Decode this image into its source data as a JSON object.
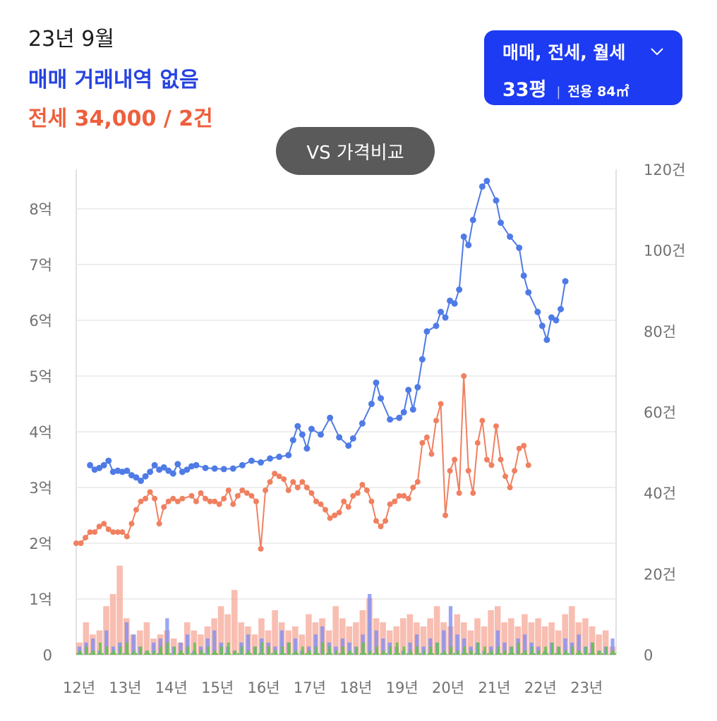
{
  "header": {
    "date": "23년 9월",
    "sale_status": "매매 거래내역 없음",
    "jeonse_summary": "전세 34,000 / 2건"
  },
  "filter": {
    "types": "매매, 전세, 월세",
    "size": "33평",
    "area": "전용 84㎡",
    "icon": "chevron-down-icon"
  },
  "vs_button": "VS 가격비교",
  "colors": {
    "sale_line": "#4f7be6",
    "jeonse_line": "#f08060",
    "sale_bar": "#7f8ef0",
    "jeonse_bar": "#f6a898",
    "monthly_bar": "#64c24a",
    "accent": "#1d3bf3"
  },
  "chart_data": {
    "type": "line",
    "x_tick_labels": [
      "12년",
      "13년",
      "14년",
      "15년",
      "16년",
      "17년",
      "18년",
      "19년",
      "20년",
      "21년",
      "22년",
      "23년"
    ],
    "y_left_tick_labels": [
      "0",
      "1억",
      "2억",
      "3억",
      "4억",
      "5억",
      "6억",
      "7억",
      "8억"
    ],
    "y_right_tick_labels": [
      "0",
      "20건",
      "40건",
      "60건",
      "80건",
      "100건",
      "120건"
    ],
    "y_left_range_eok": [
      0,
      8.5
    ],
    "y_right_range_count": [
      0,
      120
    ],
    "x_range_year": [
      2012,
      2023.7
    ],
    "grid": true,
    "series": [
      {
        "name": "매매",
        "points": [
          [
            2012.3,
            3.4
          ],
          [
            2012.4,
            3.32
          ],
          [
            2012.5,
            3.35
          ],
          [
            2012.6,
            3.4
          ],
          [
            2012.7,
            3.48
          ],
          [
            2012.8,
            3.28
          ],
          [
            2012.9,
            3.3
          ],
          [
            2013.0,
            3.28
          ],
          [
            2013.1,
            3.3
          ],
          [
            2013.2,
            3.22
          ],
          [
            2013.3,
            3.18
          ],
          [
            2013.4,
            3.12
          ],
          [
            2013.5,
            3.2
          ],
          [
            2013.6,
            3.28
          ],
          [
            2013.7,
            3.4
          ],
          [
            2013.8,
            3.32
          ],
          [
            2013.9,
            3.36
          ],
          [
            2014.0,
            3.3
          ],
          [
            2014.1,
            3.25
          ],
          [
            2014.2,
            3.42
          ],
          [
            2014.3,
            3.28
          ],
          [
            2014.4,
            3.32
          ],
          [
            2014.5,
            3.38
          ],
          [
            2014.6,
            3.4
          ],
          [
            2014.8,
            3.35
          ],
          [
            2015.0,
            3.34
          ],
          [
            2015.2,
            3.33
          ],
          [
            2015.4,
            3.34
          ],
          [
            2015.6,
            3.4
          ],
          [
            2015.8,
            3.48
          ],
          [
            2016.0,
            3.45
          ],
          [
            2016.2,
            3.52
          ],
          [
            2016.4,
            3.55
          ],
          [
            2016.6,
            3.58
          ],
          [
            2016.7,
            3.85
          ],
          [
            2016.8,
            4.1
          ],
          [
            2016.9,
            3.95
          ],
          [
            2017.0,
            3.7
          ],
          [
            2017.1,
            4.05
          ],
          [
            2017.3,
            3.95
          ],
          [
            2017.5,
            4.25
          ],
          [
            2017.7,
            3.9
          ],
          [
            2017.9,
            3.75
          ],
          [
            2018.0,
            3.88
          ],
          [
            2018.2,
            4.15
          ],
          [
            2018.4,
            4.5
          ],
          [
            2018.5,
            4.88
          ],
          [
            2018.6,
            4.6
          ],
          [
            2018.8,
            4.22
          ],
          [
            2019.0,
            4.25
          ],
          [
            2019.1,
            4.35
          ],
          [
            2019.2,
            4.75
          ],
          [
            2019.3,
            4.4
          ],
          [
            2019.4,
            4.8
          ],
          [
            2019.5,
            5.3
          ],
          [
            2019.6,
            5.8
          ],
          [
            2019.8,
            5.9
          ],
          [
            2019.9,
            6.15
          ],
          [
            2020.0,
            6.05
          ],
          [
            2020.1,
            6.35
          ],
          [
            2020.2,
            6.3
          ],
          [
            2020.3,
            6.55
          ],
          [
            2020.4,
            7.5
          ],
          [
            2020.5,
            7.35
          ],
          [
            2020.6,
            7.8
          ],
          [
            2020.8,
            8.4
          ],
          [
            2020.9,
            8.5
          ],
          [
            2021.1,
            8.15
          ],
          [
            2021.2,
            7.75
          ],
          [
            2021.4,
            7.5
          ],
          [
            2021.6,
            7.3
          ],
          [
            2021.7,
            6.8
          ],
          [
            2021.8,
            6.5
          ],
          [
            2022.0,
            6.15
          ],
          [
            2022.1,
            5.9
          ],
          [
            2022.2,
            5.65
          ],
          [
            2022.3,
            6.05
          ],
          [
            2022.4,
            6.0
          ],
          [
            2022.5,
            6.2
          ],
          [
            2022.6,
            6.7
          ]
        ]
      },
      {
        "name": "전세",
        "points": [
          [
            2012.0,
            2.0
          ],
          [
            2012.1,
            2.0
          ],
          [
            2012.2,
            2.1
          ],
          [
            2012.3,
            2.2
          ],
          [
            2012.4,
            2.2
          ],
          [
            2012.5,
            2.3
          ],
          [
            2012.6,
            2.35
          ],
          [
            2012.7,
            2.25
          ],
          [
            2012.8,
            2.2
          ],
          [
            2012.9,
            2.2
          ],
          [
            2013.0,
            2.2
          ],
          [
            2013.1,
            2.12
          ],
          [
            2013.2,
            2.35
          ],
          [
            2013.3,
            2.6
          ],
          [
            2013.4,
            2.75
          ],
          [
            2013.5,
            2.8
          ],
          [
            2013.6,
            2.92
          ],
          [
            2013.7,
            2.8
          ],
          [
            2013.8,
            2.35
          ],
          [
            2013.9,
            2.65
          ],
          [
            2014.0,
            2.75
          ],
          [
            2014.1,
            2.8
          ],
          [
            2014.2,
            2.75
          ],
          [
            2014.3,
            2.8
          ],
          [
            2014.5,
            2.85
          ],
          [
            2014.6,
            2.75
          ],
          [
            2014.7,
            2.9
          ],
          [
            2014.8,
            2.8
          ],
          [
            2014.9,
            2.75
          ],
          [
            2015.0,
            2.75
          ],
          [
            2015.1,
            2.7
          ],
          [
            2015.2,
            2.8
          ],
          [
            2015.3,
            2.95
          ],
          [
            2015.4,
            2.7
          ],
          [
            2015.5,
            2.85
          ],
          [
            2015.6,
            2.95
          ],
          [
            2015.7,
            2.9
          ],
          [
            2015.8,
            2.85
          ],
          [
            2015.9,
            2.75
          ],
          [
            2016.0,
            1.9
          ],
          [
            2016.1,
            2.95
          ],
          [
            2016.2,
            3.1
          ],
          [
            2016.3,
            3.25
          ],
          [
            2016.4,
            3.2
          ],
          [
            2016.5,
            3.15
          ],
          [
            2016.6,
            2.95
          ],
          [
            2016.7,
            3.1
          ],
          [
            2016.8,
            3.0
          ],
          [
            2016.9,
            3.1
          ],
          [
            2017.0,
            3.0
          ],
          [
            2017.1,
            2.9
          ],
          [
            2017.2,
            2.75
          ],
          [
            2017.3,
            2.7
          ],
          [
            2017.4,
            2.6
          ],
          [
            2017.5,
            2.45
          ],
          [
            2017.6,
            2.5
          ],
          [
            2017.7,
            2.55
          ],
          [
            2017.8,
            2.75
          ],
          [
            2017.9,
            2.65
          ],
          [
            2018.0,
            2.85
          ],
          [
            2018.1,
            2.9
          ],
          [
            2018.2,
            3.05
          ],
          [
            2018.3,
            2.95
          ],
          [
            2018.4,
            2.75
          ],
          [
            2018.5,
            2.4
          ],
          [
            2018.6,
            2.3
          ],
          [
            2018.7,
            2.4
          ],
          [
            2018.8,
            2.7
          ],
          [
            2018.9,
            2.75
          ],
          [
            2019.0,
            2.85
          ],
          [
            2019.1,
            2.85
          ],
          [
            2019.2,
            2.8
          ],
          [
            2019.3,
            3.0
          ],
          [
            2019.4,
            3.1
          ],
          [
            2019.5,
            3.8
          ],
          [
            2019.6,
            3.9
          ],
          [
            2019.7,
            3.6
          ],
          [
            2019.8,
            4.2
          ],
          [
            2019.9,
            4.5
          ],
          [
            2020.0,
            2.5
          ],
          [
            2020.1,
            3.3
          ],
          [
            2020.2,
            3.5
          ],
          [
            2020.3,
            2.9
          ],
          [
            2020.4,
            5.0
          ],
          [
            2020.5,
            3.3
          ],
          [
            2020.6,
            2.9
          ],
          [
            2020.7,
            3.8
          ],
          [
            2020.8,
            4.2
          ],
          [
            2020.9,
            3.5
          ],
          [
            2021.0,
            3.4
          ],
          [
            2021.1,
            4.1
          ],
          [
            2021.2,
            3.5
          ],
          [
            2021.3,
            3.2
          ],
          [
            2021.4,
            3.0
          ],
          [
            2021.5,
            3.3
          ],
          [
            2021.6,
            3.7
          ],
          [
            2021.7,
            3.75
          ],
          [
            2021.8,
            3.4
          ]
        ]
      },
      {
        "name": "월세",
        "points": []
      }
    ],
    "bars": {
      "sale_counts": [
        2,
        3,
        4,
        1,
        6,
        2,
        3,
        8,
        5,
        2,
        1,
        3,
        4,
        9,
        2,
        3,
        5,
        1,
        2,
        4,
        6,
        3,
        2,
        1,
        3,
        5,
        2,
        4,
        3,
        2,
        6,
        3,
        4,
        1,
        2,
        5,
        7,
        3,
        2,
        4,
        3,
        2,
        5,
        15,
        6,
        4,
        3,
        2,
        1,
        3,
        5,
        2,
        4,
        3,
        6,
        12,
        5,
        4,
        2,
        3,
        1,
        2,
        6,
        3,
        2,
        4,
        5,
        3,
        2,
        1,
        3,
        2,
        4,
        3,
        5,
        2,
        3,
        1,
        2,
        4
      ],
      "jeonse_counts": [
        3,
        8,
        5,
        6,
        12,
        15,
        22,
        9,
        5,
        6,
        8,
        4,
        5,
        6,
        4,
        3,
        8,
        6,
        5,
        7,
        9,
        12,
        10,
        16,
        8,
        7,
        5,
        9,
        6,
        11,
        8,
        6,
        7,
        5,
        10,
        8,
        9,
        6,
        12,
        9,
        7,
        8,
        11,
        14,
        9,
        8,
        6,
        7,
        9,
        10,
        8,
        7,
        9,
        12,
        8,
        7,
        10,
        8,
        6,
        9,
        7,
        11,
        12,
        8,
        9,
        7,
        10,
        8,
        9,
        7,
        8,
        6,
        10,
        12,
        8,
        9,
        7,
        5,
        6,
        2
      ],
      "monthly_counts": [
        1,
        2,
        1,
        3,
        2,
        1,
        2,
        3,
        1,
        2,
        1,
        1,
        2,
        3,
        2,
        1,
        2,
        3,
        1,
        2,
        1,
        2,
        3,
        1,
        2,
        1,
        2,
        3,
        2,
        1,
        2,
        3,
        1,
        2,
        1,
        2,
        3,
        2,
        1,
        2,
        1,
        2,
        3,
        1,
        2,
        1,
        2,
        3,
        2,
        1,
        2,
        1,
        2,
        3,
        1,
        2,
        1,
        2,
        1,
        3,
        2,
        1,
        2,
        1,
        2,
        3,
        1,
        2,
        1,
        2,
        3,
        2,
        1,
        2,
        1,
        2,
        3,
        1,
        2,
        1
      ]
    }
  }
}
